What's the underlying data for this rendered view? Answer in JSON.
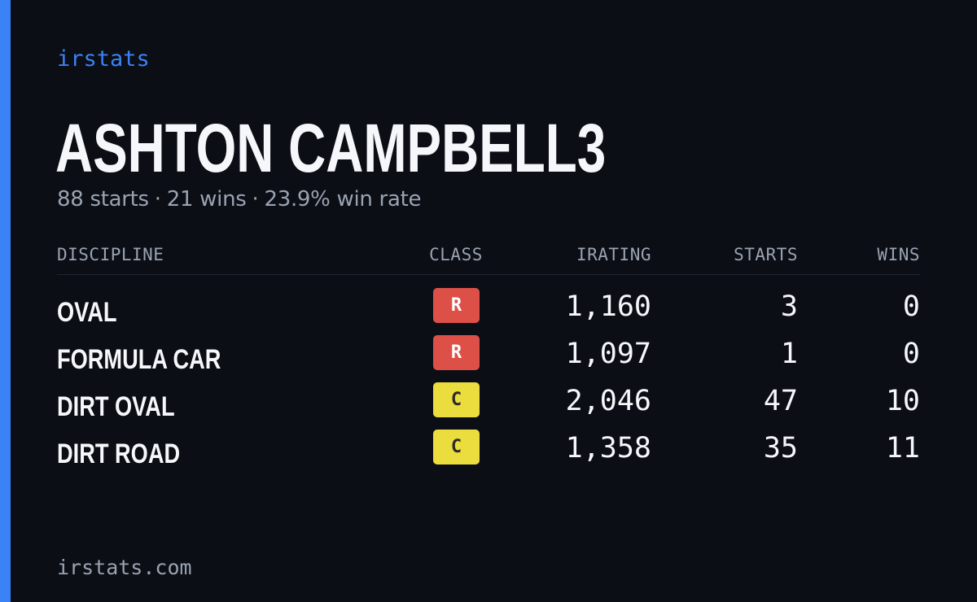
{
  "brand": {
    "label": "irstats",
    "accent_color": "#3b82f6"
  },
  "player": {
    "name": "ASHTON CAMPBELL3",
    "starts": "88 starts",
    "wins": "21 wins",
    "win_rate": "23.9% win rate",
    "separator": "·"
  },
  "table": {
    "headers": {
      "discipline": "DISCIPLINE",
      "class": "CLASS",
      "irating": "IRATING",
      "starts": "STARTS",
      "wins": "WINS"
    },
    "rows": [
      {
        "discipline": "OVAL",
        "class": "R",
        "irating": "1,160",
        "starts": "3",
        "wins": "0"
      },
      {
        "discipline": "FORMULA CAR",
        "class": "R",
        "irating": "1,097",
        "starts": "1",
        "wins": "0"
      },
      {
        "discipline": "DIRT OVAL",
        "class": "C",
        "irating": "2,046",
        "starts": "47",
        "wins": "10"
      },
      {
        "discipline": "DIRT ROAD",
        "class": "C",
        "irating": "1,358",
        "starts": "35",
        "wins": "11"
      }
    ]
  },
  "class_colors": {
    "R": "#dc5048",
    "C": "#ecdd3e"
  },
  "footer": {
    "site": "irstats.com"
  }
}
